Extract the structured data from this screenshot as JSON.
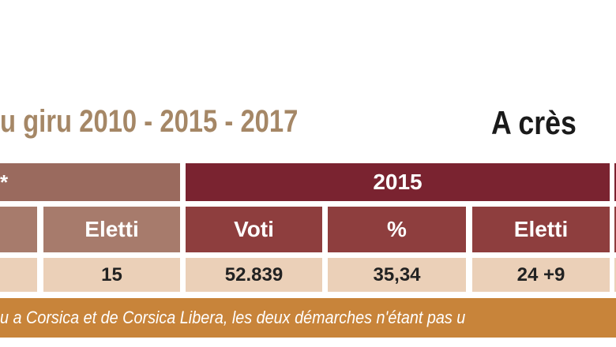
{
  "heading": {
    "title": "u giru 2010 - 2015 - 2017",
    "subtitle": "A crès"
  },
  "table": {
    "groups": [
      "*",
      "2015"
    ],
    "columns": [
      "Eletti",
      "Voti",
      "%",
      "Eletti"
    ],
    "rows": [
      [
        "15",
        "52.839",
        "35,34",
        "24 +9"
      ]
    ]
  },
  "footnote": "u a Corsica et de Corsica Libera, les deux démarches n'étant pas u"
}
